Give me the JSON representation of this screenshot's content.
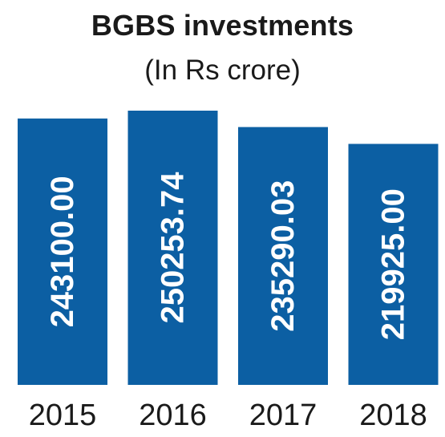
{
  "chart_data": {
    "type": "bar",
    "title": "BGBS investments",
    "subtitle": "(In Rs crore)",
    "categories": [
      "2015",
      "2016",
      "2017",
      "2018"
    ],
    "values": [
      243100.0,
      250253.74,
      235290.03,
      219925.0
    ],
    "value_labels": [
      "243100.00",
      "250253.74",
      "235290.03",
      "219925.00"
    ],
    "bar_color": "#0c5fa3",
    "value_label_color": "#ffffff",
    "value_label_orientation": "vertical",
    "grid": false,
    "legend": "none"
  }
}
